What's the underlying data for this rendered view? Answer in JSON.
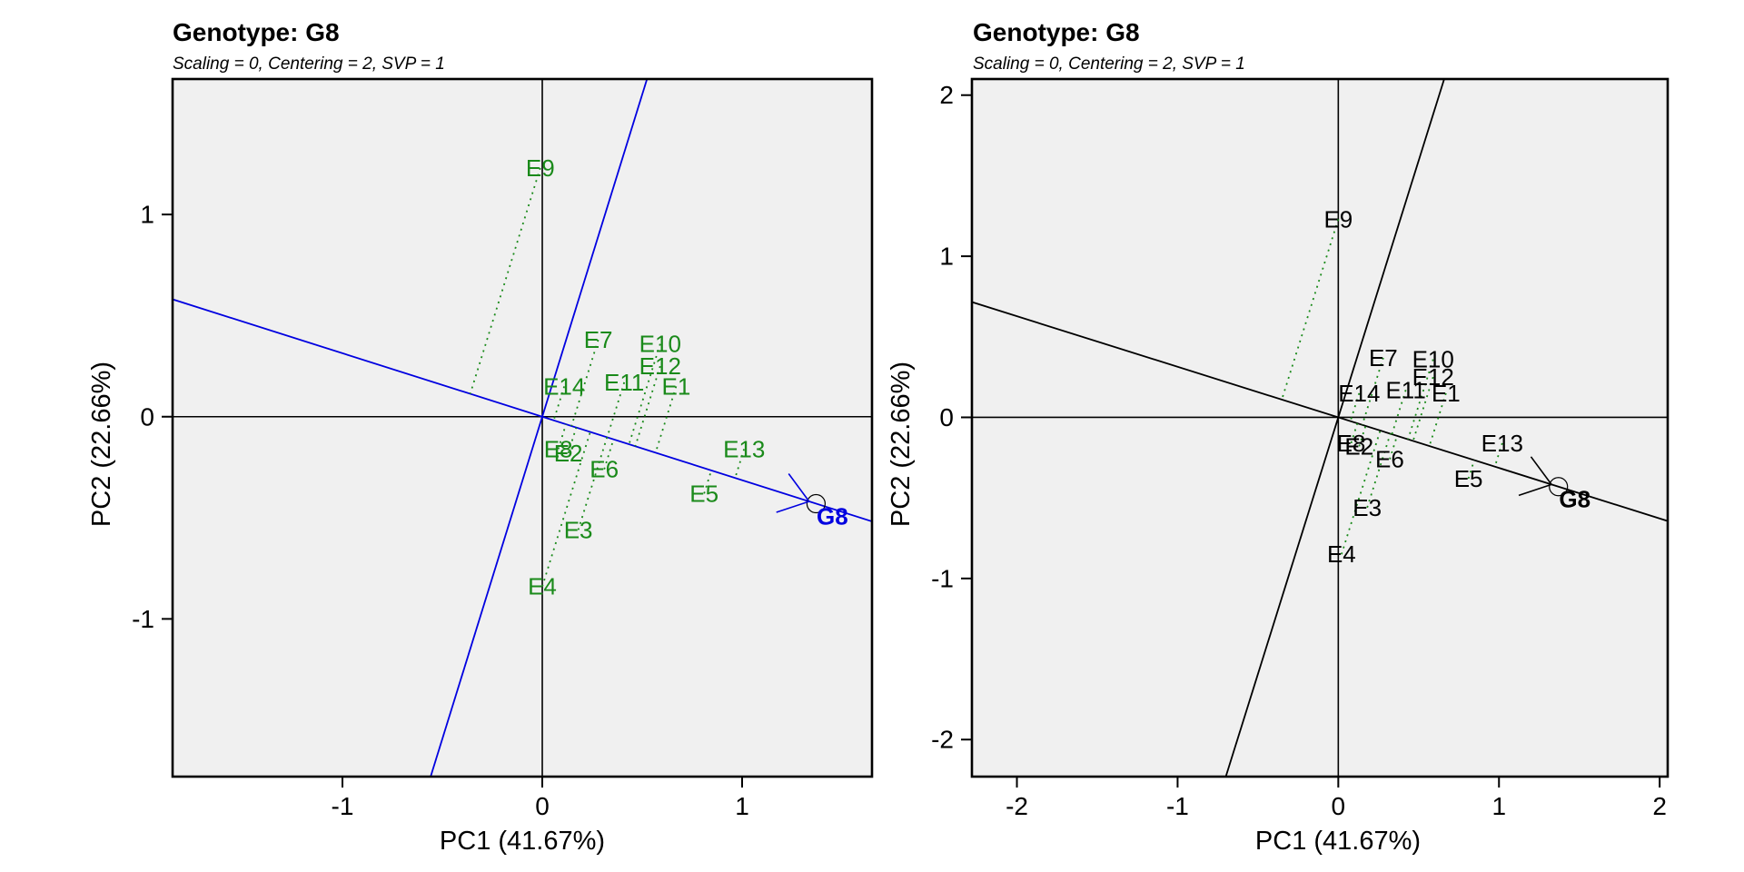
{
  "chart_data": [
    {
      "type": "scatter",
      "variant": "GGE biplot - examine genotype",
      "title": "Genotype: G8",
      "subtitle": "Scaling = 0, Centering = 2, SVP = 1",
      "xlabel": "PC1 (41.67%)",
      "ylabel": "PC2 (22.66%)",
      "xlim": [
        -1.85,
        1.65
      ],
      "ylim": [
        -1.78,
        1.67
      ],
      "xticks": [
        -1,
        0,
        1
      ],
      "yticks": [
        -1,
        0,
        1
      ],
      "xtick_labels": [
        "-1",
        "0",
        "1"
      ],
      "ytick_labels": [
        "-1",
        "0",
        "1"
      ],
      "background": "#f0f0f0",
      "environment_color": "#1a8a1a",
      "genotype_color": "#0000e0",
      "axis_line_color": "#0000e0",
      "genotype": {
        "label": "G8",
        "x": 1.37,
        "y": -0.43
      },
      "environments": [
        {
          "label": "E9",
          "x": -0.01,
          "y": 1.23
        },
        {
          "label": "E7",
          "x": 0.28,
          "y": 0.38
        },
        {
          "label": "E10",
          "x": 0.59,
          "y": 0.36
        },
        {
          "label": "E12",
          "x": 0.59,
          "y": 0.25
        },
        {
          "label": "E14",
          "x": 0.11,
          "y": 0.15
        },
        {
          "label": "E11",
          "x": 0.41,
          "y": 0.17
        },
        {
          "label": "E1",
          "x": 0.67,
          "y": 0.15
        },
        {
          "label": "E8",
          "x": 0.08,
          "y": -0.16
        },
        {
          "label": "E2",
          "x": 0.13,
          "y": -0.18
        },
        {
          "label": "E6",
          "x": 0.31,
          "y": -0.26
        },
        {
          "label": "E13",
          "x": 1.01,
          "y": -0.16
        },
        {
          "label": "E5",
          "x": 0.81,
          "y": -0.38
        },
        {
          "label": "E3",
          "x": 0.18,
          "y": -0.56
        },
        {
          "label": "E4",
          "x": 0.0,
          "y": -0.84
        }
      ]
    },
    {
      "type": "scatter",
      "variant": "GGE biplot - examine genotype",
      "title": "Genotype: G8",
      "subtitle": "Scaling = 0, Centering = 2, SVP = 1",
      "xlabel": "PC1 (41.67%)",
      "ylabel": "PC2 (22.66%)",
      "xlim": [
        -2.28,
        2.05
      ],
      "ylim": [
        -2.23,
        2.1
      ],
      "xticks": [
        -2,
        -1,
        0,
        1,
        2
      ],
      "yticks": [
        -2,
        -1,
        0,
        1,
        2
      ],
      "xtick_labels": [
        "-2",
        "-1",
        "0",
        "1",
        "2"
      ],
      "ytick_labels": [
        "-2",
        "-1",
        "0",
        "1",
        "2"
      ],
      "background": "#f0f0f0",
      "environment_color": "#000000",
      "genotype_color": "#000000",
      "axis_line_color": "#000000",
      "genotype": {
        "label": "G8",
        "x": 1.37,
        "y": -0.43
      },
      "environments": [
        {
          "label": "E9",
          "x": 0.0,
          "y": 1.23
        },
        {
          "label": "E7",
          "x": 0.28,
          "y": 0.37
        },
        {
          "label": "E10",
          "x": 0.59,
          "y": 0.36
        },
        {
          "label": "E12",
          "x": 0.59,
          "y": 0.25
        },
        {
          "label": "E14",
          "x": 0.13,
          "y": 0.15
        },
        {
          "label": "E11",
          "x": 0.42,
          "y": 0.17
        },
        {
          "label": "E1",
          "x": 0.67,
          "y": 0.15
        },
        {
          "label": "E8",
          "x": 0.08,
          "y": -0.16
        },
        {
          "label": "E2",
          "x": 0.13,
          "y": -0.18
        },
        {
          "label": "E6",
          "x": 0.32,
          "y": -0.26
        },
        {
          "label": "E13",
          "x": 1.02,
          "y": -0.16
        },
        {
          "label": "E5",
          "x": 0.81,
          "y": -0.38
        },
        {
          "label": "E3",
          "x": 0.18,
          "y": -0.56
        },
        {
          "label": "E4",
          "x": 0.02,
          "y": -0.85
        }
      ]
    }
  ]
}
